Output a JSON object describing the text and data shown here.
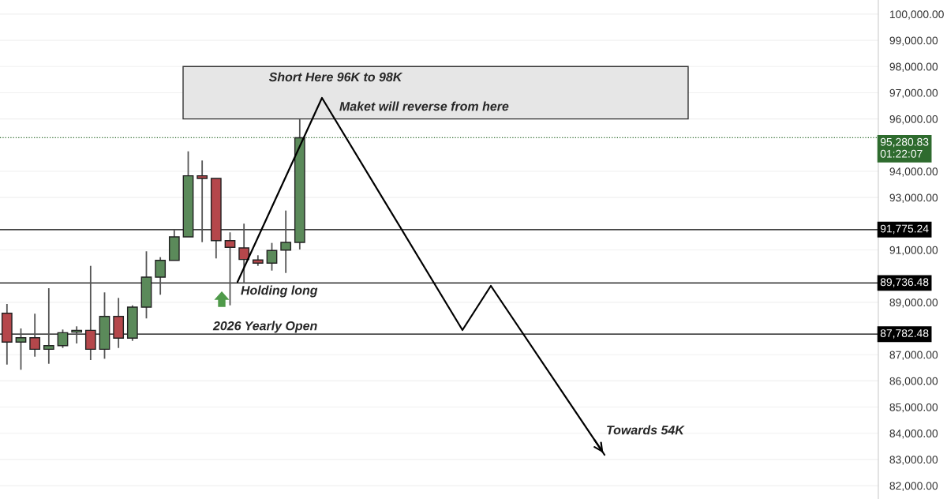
{
  "chart_data": {
    "type": "candlestick",
    "categories": [
      null,
      null,
      null,
      null,
      null,
      null,
      null,
      null,
      null,
      null,
      null,
      null,
      null,
      null,
      null,
      null,
      null,
      null,
      null,
      null,
      null,
      null,
      null,
      null,
      null,
      null,
      null,
      null,
      null,
      null,
      null,
      null,
      null,
      null,
      null,
      null,
      null,
      null,
      null,
      null,
      null,
      null,
      null,
      null,
      null,
      null,
      null,
      null,
      null,
      null,
      null,
      null,
      null,
      null,
      null,
      null,
      null,
      null,
      null,
      null,
      null,
      null,
      null
    ],
    "ohlc": [
      [
        88582,
        88935,
        86622,
        87479
      ],
      [
        87479,
        88000,
        86424,
        87648
      ],
      [
        87648,
        88564,
        86924,
        87207
      ],
      [
        87207,
        89538,
        86653,
        87346
      ],
      [
        87346,
        87960,
        87256,
        87840
      ],
      [
        87860,
        88082,
        87427,
        87930
      ],
      [
        87930,
        90391,
        86795,
        87207
      ],
      [
        87207,
        89378,
        86845,
        88462
      ],
      [
        88462,
        89167,
        87256,
        87630
      ],
      [
        87630,
        88884,
        87527,
        88814
      ],
      [
        88814,
        90946,
        88384,
        89960
      ],
      [
        89960,
        90723,
        89288,
        90602
      ],
      [
        90602,
        91775,
        90602,
        91498
      ],
      [
        91498,
        94763,
        91498,
        93828
      ],
      [
        93828,
        94413,
        91296,
        93729
      ],
      [
        93729,
        93729,
        90674,
        91356
      ],
      [
        91356,
        91670,
        88884,
        91097
      ],
      [
        91075,
        92001,
        89710,
        90633
      ],
      [
        90614,
        90795,
        90391,
        90493
      ],
      [
        90493,
        91266,
        90210,
        90976
      ],
      [
        90994,
        92502,
        90120,
        91287
      ],
      [
        91287,
        95990,
        91016,
        95280.83
      ],
      null,
      null,
      null,
      null,
      null,
      null,
      null,
      null,
      null,
      null,
      null,
      null,
      null,
      null,
      null,
      null,
      null,
      null,
      null,
      null,
      null,
      null,
      null,
      null,
      null,
      null,
      null,
      null,
      null,
      null,
      null,
      null,
      null,
      null,
      null,
      null,
      null,
      null,
      null,
      null,
      null
    ],
    "colors": [
      "#b5474b",
      "#5b8a5a",
      "#b5474b",
      "#5b8a5a",
      "#5b8a5a",
      "#5b8a5a",
      "#b5474b",
      "#5b8a5a",
      "#b5474b",
      "#5b8a5a",
      "#5b8a5a",
      "#5b8a5a",
      "#5b8a5a",
      "#5b8a5a",
      "#b5474b",
      "#b5474b",
      "#b5474b",
      "#b5474b",
      "#b5474b",
      "#5b8a5a",
      "#5b8a5a",
      "#5b8a5a",
      null,
      null,
      null,
      null,
      null,
      null,
      null,
      null,
      null,
      null,
      null,
      null,
      null,
      null,
      null,
      null,
      null,
      null,
      null,
      null,
      null,
      null,
      null,
      null,
      null,
      null,
      null,
      null,
      null,
      null,
      null,
      null,
      null,
      null,
      null,
      null,
      null,
      null,
      null,
      null,
      null
    ],
    "ylim": [
      81490,
      100540
    ],
    "yticks": [
      {
        "value": 82000,
        "label": "82,000.00"
      },
      {
        "value": 83000,
        "label": "83,000.00"
      },
      {
        "value": 84000,
        "label": "84,000.00"
      },
      {
        "value": 85000,
        "label": "85,000.00"
      },
      {
        "value": 86000,
        "label": "86,000.00"
      },
      {
        "value": 87000,
        "label": "87,000.00"
      },
      {
        "value": 89000,
        "label": "89,000.00"
      },
      {
        "value": 91000,
        "label": "91,000.00"
      },
      {
        "value": 93000,
        "label": "93,000.00"
      },
      {
        "value": 94000,
        "label": "94,000.00"
      },
      {
        "value": 96000,
        "label": "96,000.00"
      },
      {
        "value": 97000,
        "label": "97,000.00"
      },
      {
        "value": 98000,
        "label": "98,000.00"
      },
      {
        "value": 99000,
        "label": "99,000.00"
      },
      {
        "value": 100000,
        "label": "100,000.00"
      }
    ],
    "ref_lines": [
      {
        "axis": "y",
        "value": 91775.24,
        "label": "91,775.24",
        "color": "#000000",
        "line_style": "solid"
      },
      {
        "axis": "y",
        "value": 89736.48,
        "label": "89,736.48",
        "color": "#000000",
        "line_style": "solid"
      },
      {
        "axis": "y",
        "value": 87782.48,
        "label": "87,782.48",
        "color": "#000000",
        "line_style": "solid"
      },
      {
        "axis": "y",
        "value": 95280.83,
        "label": "95,280.83\n01:22:07",
        "color": "#2e6b2e",
        "line_style": "dotted"
      }
    ],
    "bands": [
      {
        "axis": "y",
        "from": 96000,
        "to": 98000,
        "label": "Short Here 96K to 98K",
        "color": "#e6e6e6"
      }
    ],
    "annotations": [
      "Maket will reverse from here",
      "Holding long",
      "2026 Yearly Open",
      "Towards 54K"
    ],
    "grid": true
  }
}
